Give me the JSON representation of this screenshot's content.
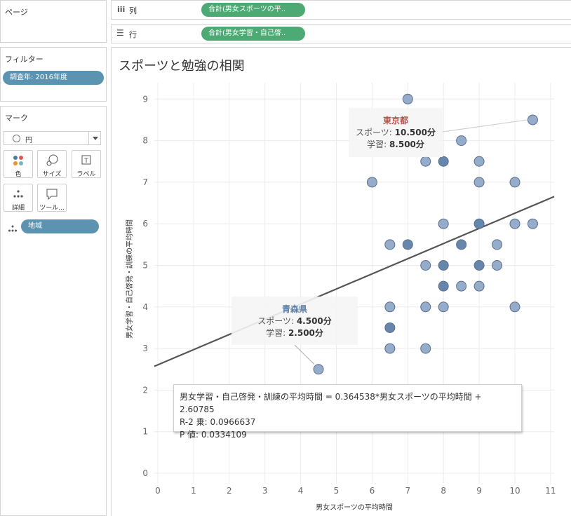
{
  "left_panel": {
    "pages": {
      "title": "ページ"
    },
    "filters": {
      "title": "フィルター",
      "pill": "調査年: 2016年度"
    },
    "marks": {
      "title": "マーク",
      "mark_type": "円",
      "buttons": [
        {
          "label": "色",
          "icon": "color-icon"
        },
        {
          "label": "サイズ",
          "icon": "size-icon"
        },
        {
          "label": "ラベル",
          "icon": "label-icon"
        },
        {
          "label": "詳細",
          "icon": "detail-icon"
        },
        {
          "label": "ツール...",
          "icon": "tooltip-icon"
        }
      ],
      "detail_pill": "地域"
    }
  },
  "shelves": {
    "columns": {
      "label": "列",
      "pill": "合計(男女スポーツの平.."
    },
    "rows": {
      "label": "行",
      "pill": "合計(男女学習・自己啓.."
    }
  },
  "chart": {
    "title": "スポーツと勉強の相関",
    "colors": {
      "point": "#8fa8c8",
      "point_dark": "#5f7fa8",
      "trend": "#555555",
      "tokyo": "#c0504d",
      "aomori": "#5b7fa8"
    }
  },
  "annotations": {
    "tokyo": {
      "title": "東京都",
      "sports_label": "スポーツ:",
      "sports_value": "10.500分",
      "study_label": "学習:",
      "study_value": "8.500分"
    },
    "aomori": {
      "title": "青森県",
      "sports_label": "スポーツ:",
      "sports_value": "4.500分",
      "study_label": "学習:",
      "study_value": "2.500分"
    }
  },
  "trend_stats": {
    "equation": "男女学習・自己啓発・訓練の平均時間 = 0.364538*男女スポーツの平均時間 + 2.60785",
    "r2": "R-2 乗: 0.0966637",
    "p": "P 値: 0.0334109"
  },
  "chart_data": {
    "type": "scatter",
    "title": "スポーツと勉強の相関",
    "xlabel": "男女スポーツの平均時間",
    "ylabel": "男女学習・自己啓発・訓練の平均時間",
    "xlim": [
      0,
      11
    ],
    "ylim": [
      0,
      9
    ],
    "xticks": [
      0,
      1,
      2,
      3,
      4,
      5,
      6,
      7,
      8,
      9,
      10,
      11
    ],
    "yticks": [
      0,
      1,
      2,
      3,
      4,
      5,
      6,
      7,
      8,
      9
    ],
    "grid": true,
    "trendline": {
      "slope": 0.364538,
      "intercept": 2.60785
    },
    "points": [
      {
        "x": 7,
        "y": 9
      },
      {
        "x": 10.5,
        "y": 8.5
      },
      {
        "x": 8.5,
        "y": 8
      },
      {
        "x": 7.5,
        "y": 7.5
      },
      {
        "x": 8,
        "y": 7.5
      },
      {
        "x": 9,
        "y": 7.5
      },
      {
        "x": 6,
        "y": 7
      },
      {
        "x": 9,
        "y": 7
      },
      {
        "x": 10,
        "y": 7
      },
      {
        "x": 8,
        "y": 6
      },
      {
        "x": 9,
        "y": 6
      },
      {
        "x": 10,
        "y": 6
      },
      {
        "x": 10.5,
        "y": 6
      },
      {
        "x": 6.5,
        "y": 5.5
      },
      {
        "x": 7,
        "y": 5.5
      },
      {
        "x": 8.5,
        "y": 5.5
      },
      {
        "x": 9.5,
        "y": 5.5
      },
      {
        "x": 7.5,
        "y": 5
      },
      {
        "x": 8,
        "y": 5
      },
      {
        "x": 9,
        "y": 5
      },
      {
        "x": 9.5,
        "y": 5
      },
      {
        "x": 8,
        "y": 4.5
      },
      {
        "x": 8.5,
        "y": 4.5
      },
      {
        "x": 9,
        "y": 4.5
      },
      {
        "x": 6.5,
        "y": 4
      },
      {
        "x": 7.5,
        "y": 4
      },
      {
        "x": 8,
        "y": 4
      },
      {
        "x": 10,
        "y": 4
      },
      {
        "x": 6.5,
        "y": 3.5
      },
      {
        "x": 6.5,
        "y": 3
      },
      {
        "x": 7.5,
        "y": 3
      },
      {
        "x": 4.5,
        "y": 2.5
      }
    ],
    "dense_points": [
      {
        "x": 8,
        "y": 7.5
      },
      {
        "x": 9,
        "y": 6
      },
      {
        "x": 7,
        "y": 5.5
      },
      {
        "x": 8.5,
        "y": 5.5
      },
      {
        "x": 8,
        "y": 5
      },
      {
        "x": 9,
        "y": 5
      },
      {
        "x": 8,
        "y": 4.5
      },
      {
        "x": 6.5,
        "y": 3.5
      }
    ]
  }
}
